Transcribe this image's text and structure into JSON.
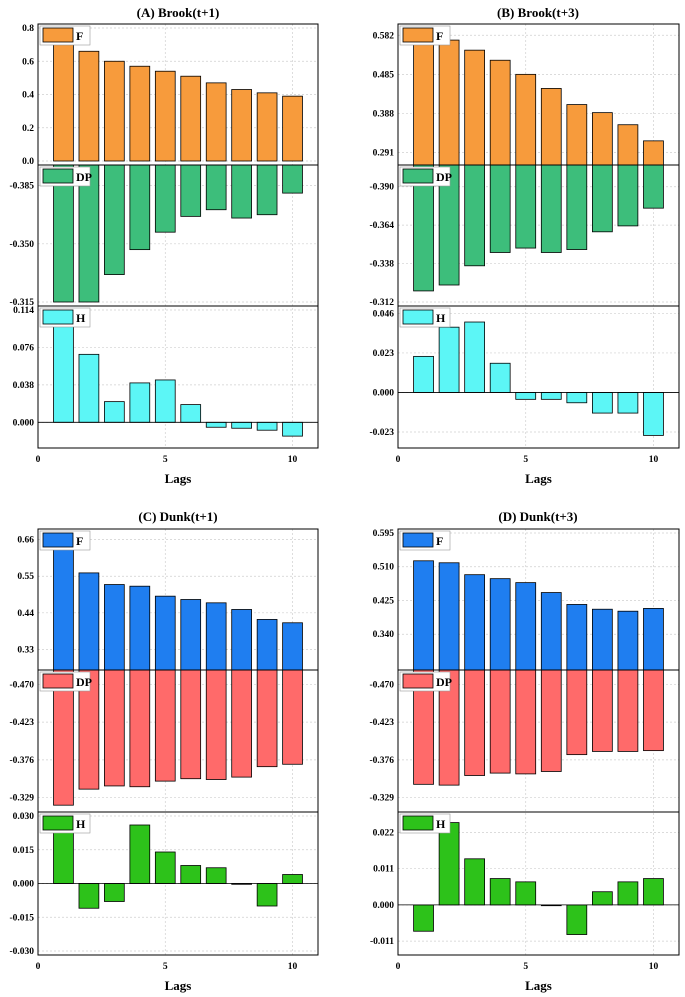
{
  "chart_data": [
    {
      "id": "A",
      "type": "bar",
      "title": "(A) Brook(t+1)",
      "xlabel": "Lags",
      "categories": [
        1,
        2,
        3,
        4,
        5,
        6,
        7,
        8,
        9,
        10
      ],
      "xlim": [
        0,
        11
      ],
      "xticks": [
        0,
        5,
        10
      ],
      "subplots": [
        {
          "name": "F",
          "color": "#F79B3C",
          "ylim": [
            0,
            0.8
          ],
          "yticks": [
            0.0,
            0.2,
            0.4,
            0.6,
            0.8
          ],
          "tick_labels": [
            "0.0",
            "0.2",
            "0.4",
            "0.6",
            "0.8"
          ],
          "values": [
            0.7,
            0.66,
            0.6,
            0.57,
            0.54,
            0.51,
            0.47,
            0.43,
            0.41,
            0.39
          ]
        },
        {
          "name": "DP",
          "color": "#3DBE7B",
          "ylim": [
            -0.315,
            -0.395
          ],
          "yticks": [
            -0.315,
            -0.35,
            -0.385
          ],
          "tick_labels": [
            "-0.315",
            "-0.350",
            "-0.385"
          ],
          "values": [
            -0.315,
            -0.315,
            -0.3315,
            -0.3465,
            -0.357,
            -0.3665,
            -0.3705,
            -0.3655,
            -0.3675,
            -0.3805
          ]
        },
        {
          "name": "H",
          "color": "#5CF6F6",
          "ylim": [
            -0.022,
            0.114
          ],
          "yticks": [
            0.0,
            0.038,
            0.076,
            0.114
          ],
          "tick_labels": [
            "0.000",
            "0.038",
            "0.076",
            "0.114"
          ],
          "values": [
            0.1,
            0.069,
            0.021,
            0.04,
            0.043,
            0.018,
            -0.005,
            -0.006,
            -0.008,
            -0.014
          ]
        }
      ]
    },
    {
      "id": "B",
      "type": "bar",
      "title": "(B) Brook(t+3)",
      "xlabel": "Lags",
      "categories": [
        1,
        2,
        3,
        4,
        5,
        6,
        7,
        8,
        9,
        10
      ],
      "xlim": [
        0,
        11
      ],
      "xticks": [
        0,
        5,
        10
      ],
      "subplots": [
        {
          "name": "F",
          "color": "#F79B3C",
          "ylim": [
            0.27,
            0.6
          ],
          "yticks": [
            0.291,
            0.388,
            0.485,
            0.582
          ],
          "tick_labels": [
            "0.291",
            "0.388",
            "0.485",
            "0.582"
          ],
          "values": [
            0.6,
            0.57,
            0.545,
            0.52,
            0.485,
            0.45,
            0.41,
            0.39,
            0.36,
            0.32
          ]
        },
        {
          "name": "DP",
          "color": "#3DBE7B",
          "ylim": [
            -0.312,
            -0.402
          ],
          "yticks": [
            -0.312,
            -0.338,
            -0.364,
            -0.39
          ],
          "tick_labels": [
            "-0.312",
            "-0.338",
            "-0.364",
            "-0.390"
          ],
          "values": [
            -0.3195,
            -0.3235,
            -0.3365,
            -0.3455,
            -0.3485,
            -0.3455,
            -0.3475,
            -0.3595,
            -0.3635,
            -0.3755
          ]
        },
        {
          "name": "H",
          "color": "#5CF6F6",
          "ylim": [
            -0.03,
            0.048
          ],
          "yticks": [
            -0.023,
            0.0,
            0.023,
            0.046
          ],
          "tick_labels": [
            "-0.023",
            "0.000",
            "0.023",
            "0.046"
          ],
          "values": [
            0.021,
            0.038,
            0.041,
            0.017,
            -0.004,
            -0.004,
            -0.006,
            -0.012,
            -0.012,
            -0.025
          ]
        }
      ]
    },
    {
      "id": "C",
      "type": "bar",
      "title": "(C) Dunk(t+1)",
      "xlabel": "Lags",
      "categories": [
        1,
        2,
        3,
        4,
        5,
        6,
        7,
        8,
        9,
        10
      ],
      "xlim": [
        0,
        11
      ],
      "xticks": [
        0,
        5,
        10
      ],
      "subplots": [
        {
          "name": "F",
          "color": "#1F7EF0",
          "ylim": [
            0.28,
            0.68
          ],
          "yticks": [
            0.33,
            0.44,
            0.55,
            0.66
          ],
          "tick_labels": [
            "0.33",
            "0.44",
            "0.55",
            "0.66"
          ],
          "values": [
            0.65,
            0.56,
            0.525,
            0.52,
            0.49,
            0.48,
            0.47,
            0.45,
            0.42,
            0.41
          ]
        },
        {
          "name": "DP",
          "color": "#FF6A6A",
          "ylim": [
            -0.316,
            -0.483
          ],
          "yticks": [
            -0.329,
            -0.376,
            -0.423,
            -0.47
          ],
          "tick_labels": [
            "-0.329",
            "-0.376",
            "-0.423",
            "-0.470"
          ],
          "values": [
            -0.3195,
            -0.3395,
            -0.3435,
            -0.3425,
            -0.3495,
            -0.3525,
            -0.3515,
            -0.3545,
            -0.3675,
            -0.3705
          ]
        },
        {
          "name": "H",
          "color": "#2DC21A",
          "ylim": [
            -0.03,
            0.03
          ],
          "yticks": [
            -0.03,
            -0.015,
            0.0,
            0.015,
            0.03
          ],
          "tick_labels": [
            "-0.030",
            "-0.015",
            "0.000",
            "0.015",
            "0.030"
          ],
          "values": [
            0.024,
            -0.011,
            -0.008,
            0.026,
            0.014,
            0.008,
            0.007,
            0.0,
            -0.01,
            0.004
          ]
        }
      ]
    },
    {
      "id": "D",
      "type": "bar",
      "title": "(D) Dunk(t+3)",
      "xlabel": "Lags",
      "categories": [
        1,
        2,
        3,
        4,
        5,
        6,
        7,
        8,
        9,
        10
      ],
      "xlim": [
        0,
        11
      ],
      "xticks": [
        0,
        5,
        10
      ],
      "subplots": [
        {
          "name": "F",
          "color": "#1F7EF0",
          "ylim": [
            0.26,
            0.595
          ],
          "yticks": [
            0.34,
            0.425,
            0.51,
            0.595
          ],
          "tick_labels": [
            "0.340",
            "0.425",
            "0.510",
            "0.595"
          ],
          "values": [
            0.525,
            0.52,
            0.49,
            0.48,
            0.47,
            0.445,
            0.415,
            0.403,
            0.398,
            0.405
          ]
        },
        {
          "name": "DP",
          "color": "#FF6A6A",
          "ylim": [
            -0.316,
            -0.483
          ],
          "yticks": [
            -0.329,
            -0.376,
            -0.423,
            -0.47
          ],
          "tick_labels": [
            "-0.329",
            "-0.376",
            "-0.423",
            "-0.470"
          ],
          "values": [
            -0.3455,
            -0.3445,
            -0.3565,
            -0.3595,
            -0.3585,
            -0.3615,
            -0.3825,
            -0.3865,
            -0.3865,
            -0.3875
          ]
        },
        {
          "name": "H",
          "color": "#2DC21A",
          "ylim": [
            -0.014,
            0.027
          ],
          "yticks": [
            -0.011,
            0.0,
            0.011,
            0.022
          ],
          "tick_labels": [
            "-0.011",
            "0.000",
            "0.011",
            "0.022"
          ],
          "values": [
            -0.008,
            0.025,
            0.014,
            0.008,
            0.007,
            0.0,
            -0.009,
            0.004,
            0.007,
            0.008
          ]
        }
      ]
    }
  ]
}
